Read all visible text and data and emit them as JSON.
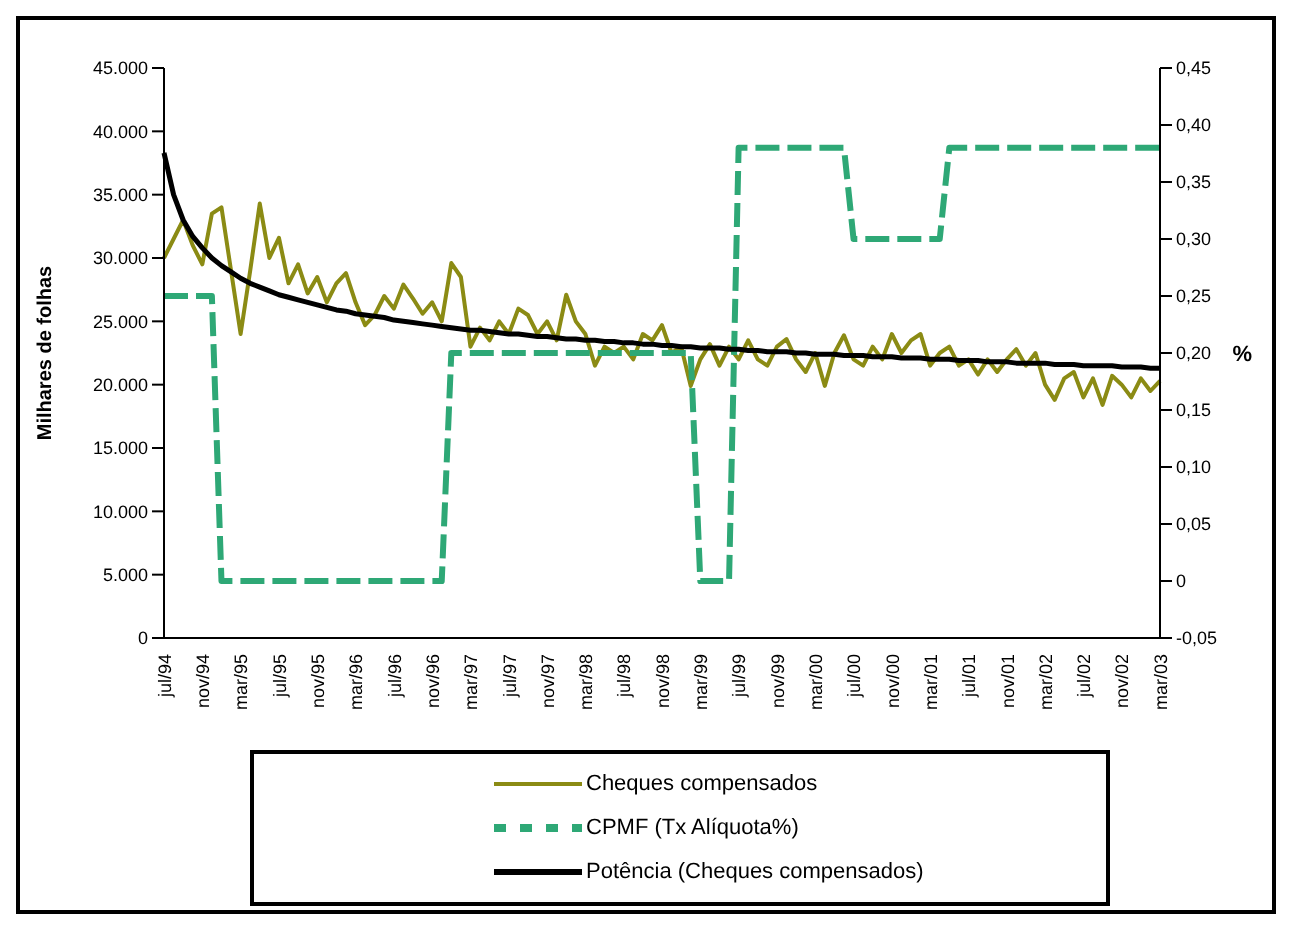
{
  "chart_data": {
    "type": "line",
    "ylabel": "Milhares de folhas",
    "y2label": "%",
    "categories": [
      "jul/94",
      null,
      null,
      null,
      "nov/94",
      null,
      null,
      null,
      "mar/95",
      null,
      null,
      null,
      "jul/95",
      null,
      null,
      null,
      "nov/95",
      null,
      null,
      null,
      "mar/96",
      null,
      null,
      null,
      "jul/96",
      null,
      null,
      null,
      "nov/96",
      null,
      null,
      null,
      "mar/97",
      null,
      null,
      null,
      "jul/97",
      null,
      null,
      null,
      "nov/97",
      null,
      null,
      null,
      "mar/98",
      null,
      null,
      null,
      "jul/98",
      null,
      null,
      null,
      "nov/98",
      null,
      null,
      null,
      "mar/99",
      null,
      null,
      null,
      "jul/99",
      null,
      null,
      null,
      "nov/99",
      null,
      null,
      null,
      "mar/00",
      null,
      null,
      null,
      "jul/00",
      null,
      null,
      null,
      "nov/00",
      null,
      null,
      null,
      "mar/01",
      null,
      null,
      null,
      "jul/01",
      null,
      null,
      null,
      "nov/01",
      null,
      null,
      null,
      "mar/02",
      null,
      null,
      null,
      "jul/02",
      null,
      null,
      null,
      "nov/02",
      null,
      null,
      null,
      "mar/03"
    ],
    "series": [
      {
        "name": "Cheques compensados",
        "color": "#8b8b14",
        "values": [
          30000,
          31500,
          33000,
          31000,
          29500,
          33500,
          34000,
          29000,
          24000,
          29000,
          34300,
          30000,
          31600,
          28000,
          29500,
          27200,
          28500,
          26500,
          28000,
          28800,
          26500,
          24700,
          25500,
          27000,
          26000,
          27900,
          26800,
          25600,
          26500,
          25000,
          29600,
          28500,
          23000,
          24500,
          23500,
          25000,
          24000,
          26000,
          25500,
          24000,
          25000,
          23500,
          27100,
          25000,
          24000,
          21500,
          23000,
          22500,
          23000,
          22000,
          24000,
          23500,
          24700,
          22500,
          23000,
          19900,
          22000,
          23200,
          21500,
          23000,
          22000,
          23500,
          22000,
          21500,
          23000,
          23600,
          22000,
          21000,
          22500,
          19900,
          22500,
          23900,
          22000,
          21500,
          23000,
          22000,
          24000,
          22500,
          23500,
          24000,
          21500,
          22500,
          23000,
          21500,
          22000,
          20800,
          22000,
          21000,
          22000,
          22800,
          21500,
          22500,
          20000,
          18800,
          20500,
          21000,
          19000,
          20500,
          18400,
          20700,
          20000,
          19000,
          20500,
          19500,
          20300
        ]
      },
      {
        "name": "CPMF (Tx Alíquota%)",
        "axis": "y2",
        "color": "#2ea876",
        "line_style": "dashed",
        "values": [
          0.25,
          0.25,
          0.25,
          0.25,
          0.25,
          0.25,
          0,
          0,
          0,
          0,
          0,
          0,
          0,
          0,
          0,
          0,
          0,
          0,
          0,
          0,
          0,
          0,
          0,
          0,
          0,
          0,
          0,
          0,
          0,
          0,
          0.2,
          0.2,
          0.2,
          0.2,
          0.2,
          0.2,
          0.2,
          0.2,
          0.2,
          0.2,
          0.2,
          0.2,
          0.2,
          0.2,
          0.2,
          0.2,
          0.2,
          0.2,
          0.2,
          0.2,
          0.2,
          0.2,
          0.2,
          0.2,
          0.2,
          0.2,
          0,
          0,
          0,
          0,
          0.38,
          0.38,
          0.38,
          0.38,
          0.38,
          0.38,
          0.38,
          0.38,
          0.38,
          0.38,
          0.38,
          0.38,
          0.3,
          0.3,
          0.3,
          0.3,
          0.3,
          0.3,
          0.3,
          0.3,
          0.3,
          0.3,
          0.38,
          0.38,
          0.38,
          0.38,
          0.38,
          0.38,
          0.38,
          0.38,
          0.38,
          0.38,
          0.38,
          0.38,
          0.38,
          0.38,
          0.38,
          0.38,
          0.38,
          0.38,
          0.38,
          0.38,
          0.38,
          0.38,
          0.38
        ]
      },
      {
        "name": "Potência (Cheques compensados)",
        "color": "#000000",
        "values": [
          38300,
          35000,
          33000,
          31700,
          30800,
          30000,
          29400,
          28900,
          28400,
          28000,
          27700,
          27400,
          27100,
          26900,
          26700,
          26500,
          26300,
          26100,
          25900,
          25800,
          25600,
          25500,
          25400,
          25300,
          25100,
          25000,
          24900,
          24800,
          24700,
          24600,
          24500,
          24400,
          24300,
          24300,
          24200,
          24100,
          24000,
          24000,
          23900,
          23800,
          23800,
          23700,
          23600,
          23600,
          23500,
          23500,
          23400,
          23400,
          23300,
          23300,
          23200,
          23200,
          23100,
          23100,
          23000,
          23000,
          22900,
          22900,
          22900,
          22800,
          22800,
          22700,
          22700,
          22600,
          22600,
          22600,
          22500,
          22500,
          22400,
          22400,
          22400,
          22300,
          22300,
          22300,
          22200,
          22200,
          22200,
          22100,
          22100,
          22100,
          22000,
          22000,
          22000,
          21900,
          21900,
          21900,
          21800,
          21800,
          21800,
          21700,
          21700,
          21700,
          21700,
          21600,
          21600,
          21600,
          21500,
          21500,
          21500,
          21500,
          21400,
          21400,
          21400,
          21300,
          21300
        ]
      }
    ],
    "ylim": [
      0,
      45000
    ],
    "yticks": [
      0,
      {
        "value": 5000,
        "label": "5.000"
      },
      {
        "value": 10000,
        "label": "10.000"
      },
      {
        "value": 15000,
        "label": "15.000"
      },
      {
        "value": 20000,
        "label": "20.000"
      },
      {
        "value": 25000,
        "label": "25.000"
      },
      {
        "value": 30000,
        "label": "30.000"
      },
      {
        "value": 35000,
        "label": "35.000"
      },
      {
        "value": 40000,
        "label": "40.000"
      },
      {
        "value": 45000,
        "label": "45.000"
      }
    ],
    "y2lim": [
      -0.05,
      0.45
    ],
    "y2ticks": [
      {
        "value": -0.05,
        "label": "-0,05"
      },
      0,
      {
        "value": 0.05,
        "label": "0,05"
      },
      {
        "value": 0.1,
        "label": "0,10"
      },
      {
        "value": 0.15,
        "label": "0,15"
      },
      {
        "value": 0.2,
        "label": "0,20"
      },
      {
        "value": 0.25,
        "label": "0,25"
      },
      {
        "value": 0.3,
        "label": "0,30"
      },
      {
        "value": 0.35,
        "label": "0,35"
      },
      {
        "value": 0.4,
        "label": "0,40"
      },
      {
        "value": 0.45,
        "label": "0,45"
      }
    ],
    "legend": "bottom",
    "marker": "none"
  }
}
